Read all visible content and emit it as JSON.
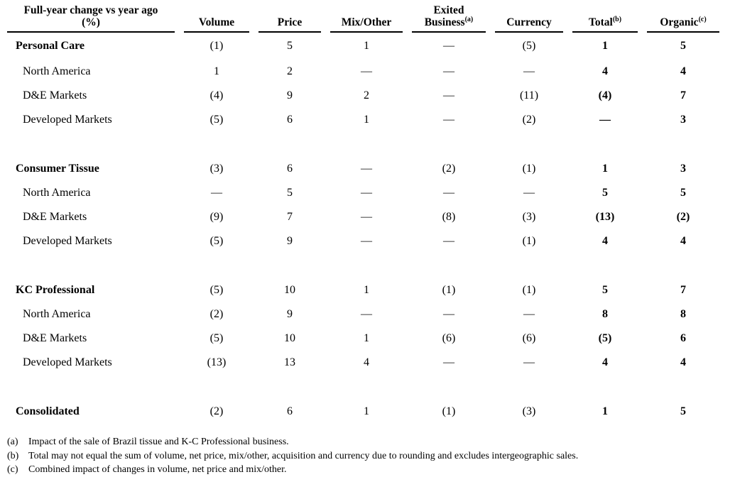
{
  "title": {
    "line1": "Full-year change vs year ago",
    "line2": "(%)"
  },
  "columns": [
    {
      "label": "Volume",
      "sup": ""
    },
    {
      "label": "Price",
      "sup": ""
    },
    {
      "label": "Mix/Other",
      "sup": ""
    },
    {
      "top": "Exited",
      "label": "Business",
      "sup": "(a)"
    },
    {
      "label": "Currency",
      "sup": ""
    },
    {
      "label": "Total",
      "sup": "(b)"
    },
    {
      "label": "Organic",
      "sup": "(c)"
    }
  ],
  "rows": [
    {
      "label": "Personal Care",
      "values": [
        "(1)",
        "5",
        "1",
        "—",
        "(5)",
        "1",
        "5"
      ]
    },
    {
      "label": "North America",
      "values": [
        "1",
        "2",
        "—",
        "—",
        "—",
        "4",
        "4"
      ]
    },
    {
      "label": "D&E Markets",
      "values": [
        "(4)",
        "9",
        "2",
        "—",
        "(11)",
        "(4)",
        "7"
      ]
    },
    {
      "label": "Developed Markets",
      "values": [
        "(5)",
        "6",
        "1",
        "—",
        "(2)",
        "—",
        "3"
      ]
    },
    {
      "label": "Consumer Tissue",
      "values": [
        "(3)",
        "6",
        "—",
        "(2)",
        "(1)",
        "1",
        "3"
      ]
    },
    {
      "label": "North America",
      "values": [
        "—",
        "5",
        "—",
        "—",
        "—",
        "5",
        "5"
      ]
    },
    {
      "label": "D&E Markets",
      "values": [
        "(9)",
        "7",
        "—",
        "(8)",
        "(3)",
        "(13)",
        "(2)"
      ]
    },
    {
      "label": "Developed Markets",
      "values": [
        "(5)",
        "9",
        "—",
        "—",
        "(1)",
        "4",
        "4"
      ]
    },
    {
      "label": "KC Professional",
      "values": [
        "(5)",
        "10",
        "1",
        "(1)",
        "(1)",
        "5",
        "7"
      ]
    },
    {
      "label": "North America",
      "values": [
        "(2)",
        "9",
        "—",
        "—",
        "—",
        "8",
        "8"
      ]
    },
    {
      "label": "D&E Markets",
      "values": [
        "(5)",
        "10",
        "1",
        "(6)",
        "(6)",
        "(5)",
        "6"
      ]
    },
    {
      "label": "Developed Markets",
      "values": [
        "(13)",
        "13",
        "4",
        "—",
        "—",
        "4",
        "4"
      ]
    },
    {
      "label": "Consolidated",
      "values": [
        "(2)",
        "6",
        "1",
        "(1)",
        "(3)",
        "1",
        "5"
      ]
    }
  ],
  "footnotes": [
    {
      "marker": "(a)",
      "text": "Impact of the sale of Brazil tissue and K-C Professional business."
    },
    {
      "marker": "(b)",
      "text": "Total may not equal the sum of volume, net price, mix/other, acquisition and currency due to rounding and excludes intergeographic sales."
    },
    {
      "marker": "(c)",
      "text": "Combined impact of changes in volume, net price and mix/other."
    }
  ]
}
